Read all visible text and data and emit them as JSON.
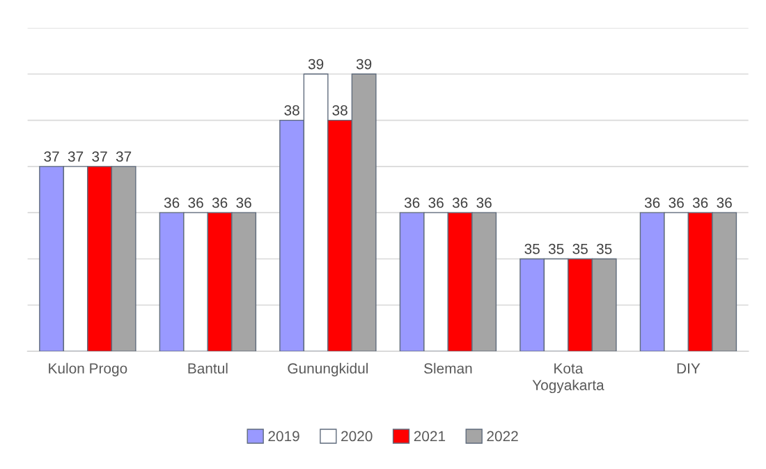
{
  "chart_data": {
    "type": "bar",
    "categories": [
      "Kulon Progo",
      "Bantul",
      "Gunungkidul",
      "Sleman",
      "Kota Yogyakarta",
      "DIY"
    ],
    "series": [
      {
        "name": "2019",
        "color": "#9999ff",
        "values": [
          37,
          36,
          38,
          36,
          35,
          36
        ]
      },
      {
        "name": "2020",
        "color": "#ffffff",
        "values": [
          37,
          36,
          39,
          36,
          35,
          36
        ]
      },
      {
        "name": "2021",
        "color": "#ff0000",
        "values": [
          37,
          36,
          38,
          36,
          35,
          36
        ]
      },
      {
        "name": "2022",
        "color": "#a5a5a5",
        "values": [
          37,
          36,
          39,
          36,
          35,
          36
        ]
      }
    ],
    "ylim": [
      33,
      40
    ],
    "yticks": [
      {
        "value": 33,
        "label": null
      },
      {
        "value": 34,
        "label": null
      },
      {
        "value": 35,
        "label": null
      },
      {
        "value": 36,
        "label": null
      },
      {
        "value": 37,
        "label": null
      },
      {
        "value": 38,
        "label": null
      },
      {
        "value": 39,
        "label": null
      },
      {
        "value": 40,
        "label": null
      }
    ],
    "tick_labels": "x",
    "grid": "y",
    "data_labels": true,
    "legend": "bottom"
  }
}
